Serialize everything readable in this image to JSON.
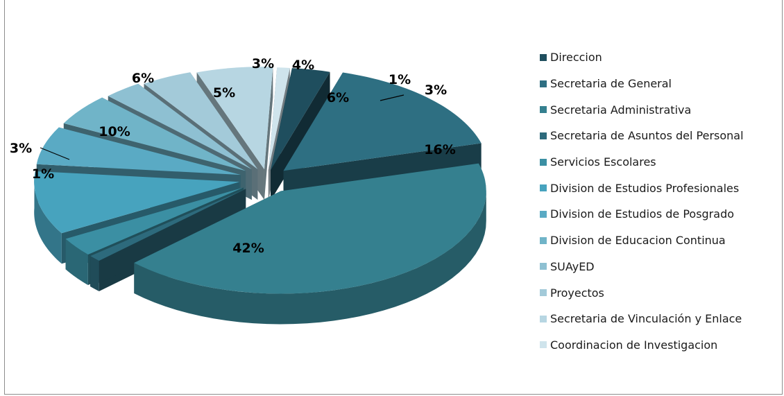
{
  "chart_data": {
    "type": "pie",
    "title": "",
    "categories": [
      "Direccion",
      "Secretaria de General",
      "Secretaria Administrativa",
      "Secretaria de Asuntos del Personal",
      "Servicios Escolares",
      "Division de Estudios Profesionales",
      "Division de Estudios de Posgrado",
      "Division de Educacion Continua",
      "SUAyED",
      "Proyectos",
      "Secretaria de Vinculación y Enlace",
      "Coordinacion de Investigacion"
    ],
    "values": [
      3,
      16,
      42,
      1,
      3,
      10,
      6,
      5,
      3,
      4,
      6,
      1
    ],
    "labels": [
      "3%",
      "16%",
      "42%",
      "1%",
      "3%",
      "10%",
      "6%",
      "5%",
      "3%",
      "4%",
      "6%",
      "1%"
    ],
    "colors": [
      "#1f4e5e",
      "#2e6f82",
      "#35808f",
      "#2d6a7c",
      "#3b8fa3",
      "#47a3be",
      "#5aaac4",
      "#70b4c8",
      "#8ec0d2",
      "#a3cad9",
      "#b7d6e2",
      "#cfe4ec"
    ],
    "legend_position": "right"
  }
}
